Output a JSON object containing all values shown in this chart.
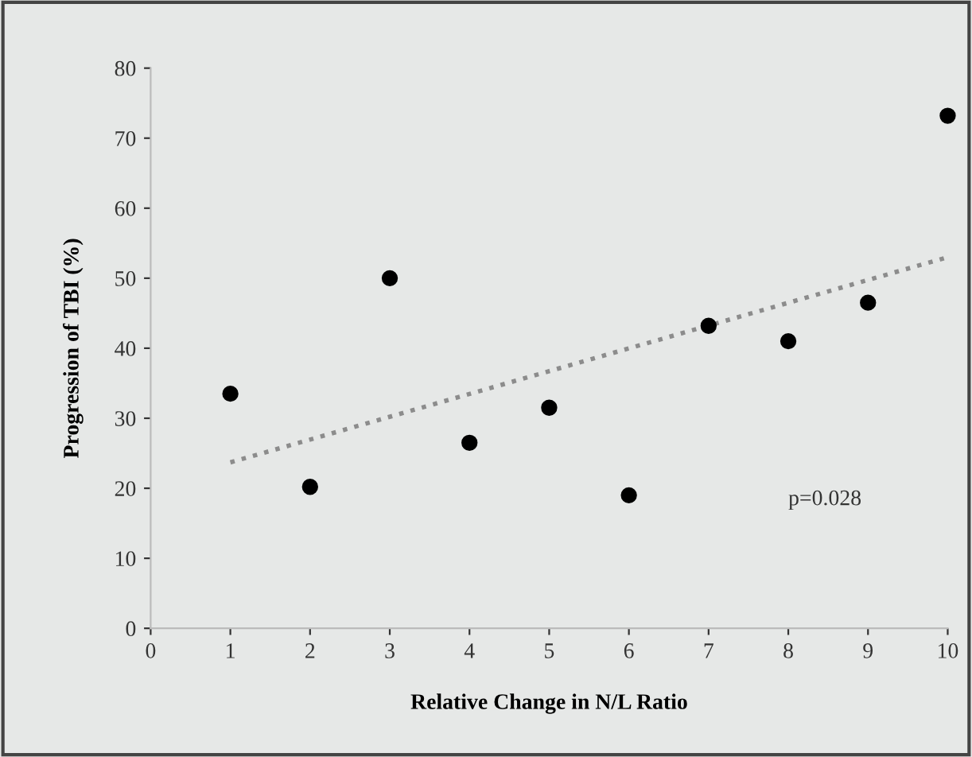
{
  "chart_data": {
    "type": "scatter",
    "xlabel": "Relative Change in N/L Ratio",
    "ylabel": "Progression of TBI (%)",
    "series": [
      {
        "color": "#000000",
        "x": [
          1,
          2,
          3,
          4,
          5,
          6,
          7,
          8,
          9,
          10
        ],
        "values": [
          33.5,
          20.2,
          50,
          26.5,
          31.5,
          19,
          43.2,
          41,
          46.5,
          73.2
        ]
      },
      {
        "type": "line",
        "color": "#8c8c8c",
        "x": [
          1,
          10
        ],
        "values": [
          23.7,
          53
        ],
        "line_style": "dotted",
        "marker": "none"
      }
    ],
    "annotations": [
      "p=0.028"
    ],
    "xlim": [
      0,
      10
    ],
    "ylim": [
      0,
      80
    ],
    "xticks": [
      0,
      1,
      2,
      3,
      4,
      5,
      6,
      7,
      8,
      9,
      10
    ],
    "yticks": [
      0,
      10,
      20,
      30,
      40,
      50,
      60,
      70,
      80
    ],
    "grid": false,
    "legend": false,
    "marker": "circle"
  }
}
